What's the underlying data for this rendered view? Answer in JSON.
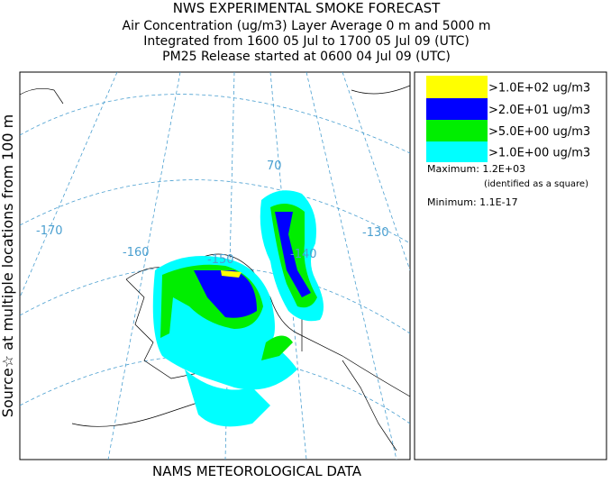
{
  "header": {
    "lines": [
      "NWS EXPERIMENTAL SMOKE FORECAST",
      "Air Concentration (ug/m3) Layer Average    0 m and  5000 m",
      "Integrated from 1600 05 Jul to 1700 05 Jul 09 (UTC)",
      "PM25 Release started at 0600 04 Jul 09 (UTC)"
    ]
  },
  "side_label": "Source☆ at multiple locations from 100 m",
  "footer": "NAMS METEOROLOGICAL DATA",
  "legend": {
    "items": [
      {
        "label": ">1.0E+02 ug/m3",
        "color": "#ffff00"
      },
      {
        "label": ">2.0E+01 ug/m3",
        "color": "#0000ff"
      },
      {
        "label": ">5.0E+00 ug/m3",
        "color": "#00ee00"
      },
      {
        "label": ">1.0E+00 ug/m3",
        "color": "#00ffff"
      }
    ],
    "maximum": "Maximum: 1.2E+03",
    "max_note": "(identified as a square)",
    "minimum": "Minimum: 1.1E-17"
  },
  "map": {
    "labels": [
      "-170",
      "-160",
      "-150",
      "-140",
      "-130",
      "70"
    ]
  }
}
